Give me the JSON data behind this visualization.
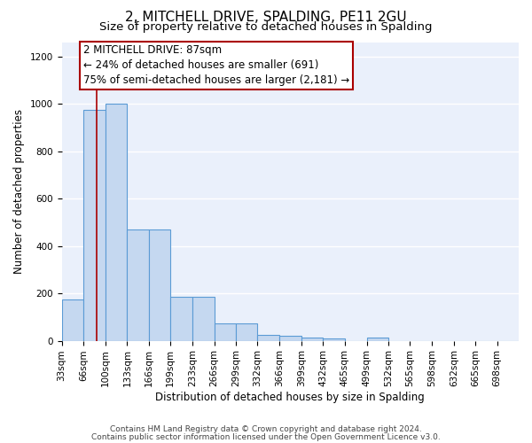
{
  "title": "2, MITCHELL DRIVE, SPALDING, PE11 2GU",
  "subtitle": "Size of property relative to detached houses in Spalding",
  "xlabel": "Distribution of detached houses by size in Spalding",
  "ylabel": "Number of detached properties",
  "footnote1": "Contains HM Land Registry data © Crown copyright and database right 2024.",
  "footnote2_full": "Contains public sector information licensed under the Open Government Licence v3.0.",
  "bar_edges": [
    33,
    66,
    100,
    133,
    166,
    199,
    233,
    266,
    299,
    332,
    366,
    399,
    432,
    465,
    499,
    532,
    565,
    598,
    632,
    665,
    698,
    731
  ],
  "bar_heights": [
    175,
    975,
    1000,
    470,
    470,
    185,
    185,
    75,
    75,
    25,
    20,
    15,
    10,
    0,
    15,
    0,
    0,
    0,
    0,
    0,
    0
  ],
  "bar_color": "#c5d8f0",
  "bar_edge_color": "#5b9bd5",
  "bar_linewidth": 0.8,
  "red_line_x": 87,
  "red_line_color": "#aa0000",
  "annotation_line1": "2 MITCHELL DRIVE: 87sqm",
  "annotation_line2": "← 24% of detached houses are smaller (691)",
  "annotation_line3": "75% of semi-detached houses are larger (2,181) →",
  "ylim": [
    0,
    1260
  ],
  "yticks": [
    0,
    200,
    400,
    600,
    800,
    1000,
    1200
  ],
  "background_color": "#eaf0fb",
  "grid_color": "#ffffff",
  "title_fontsize": 11,
  "subtitle_fontsize": 9.5,
  "axis_label_fontsize": 8.5,
  "tick_fontsize": 7.5,
  "annotation_fontsize": 8.5
}
